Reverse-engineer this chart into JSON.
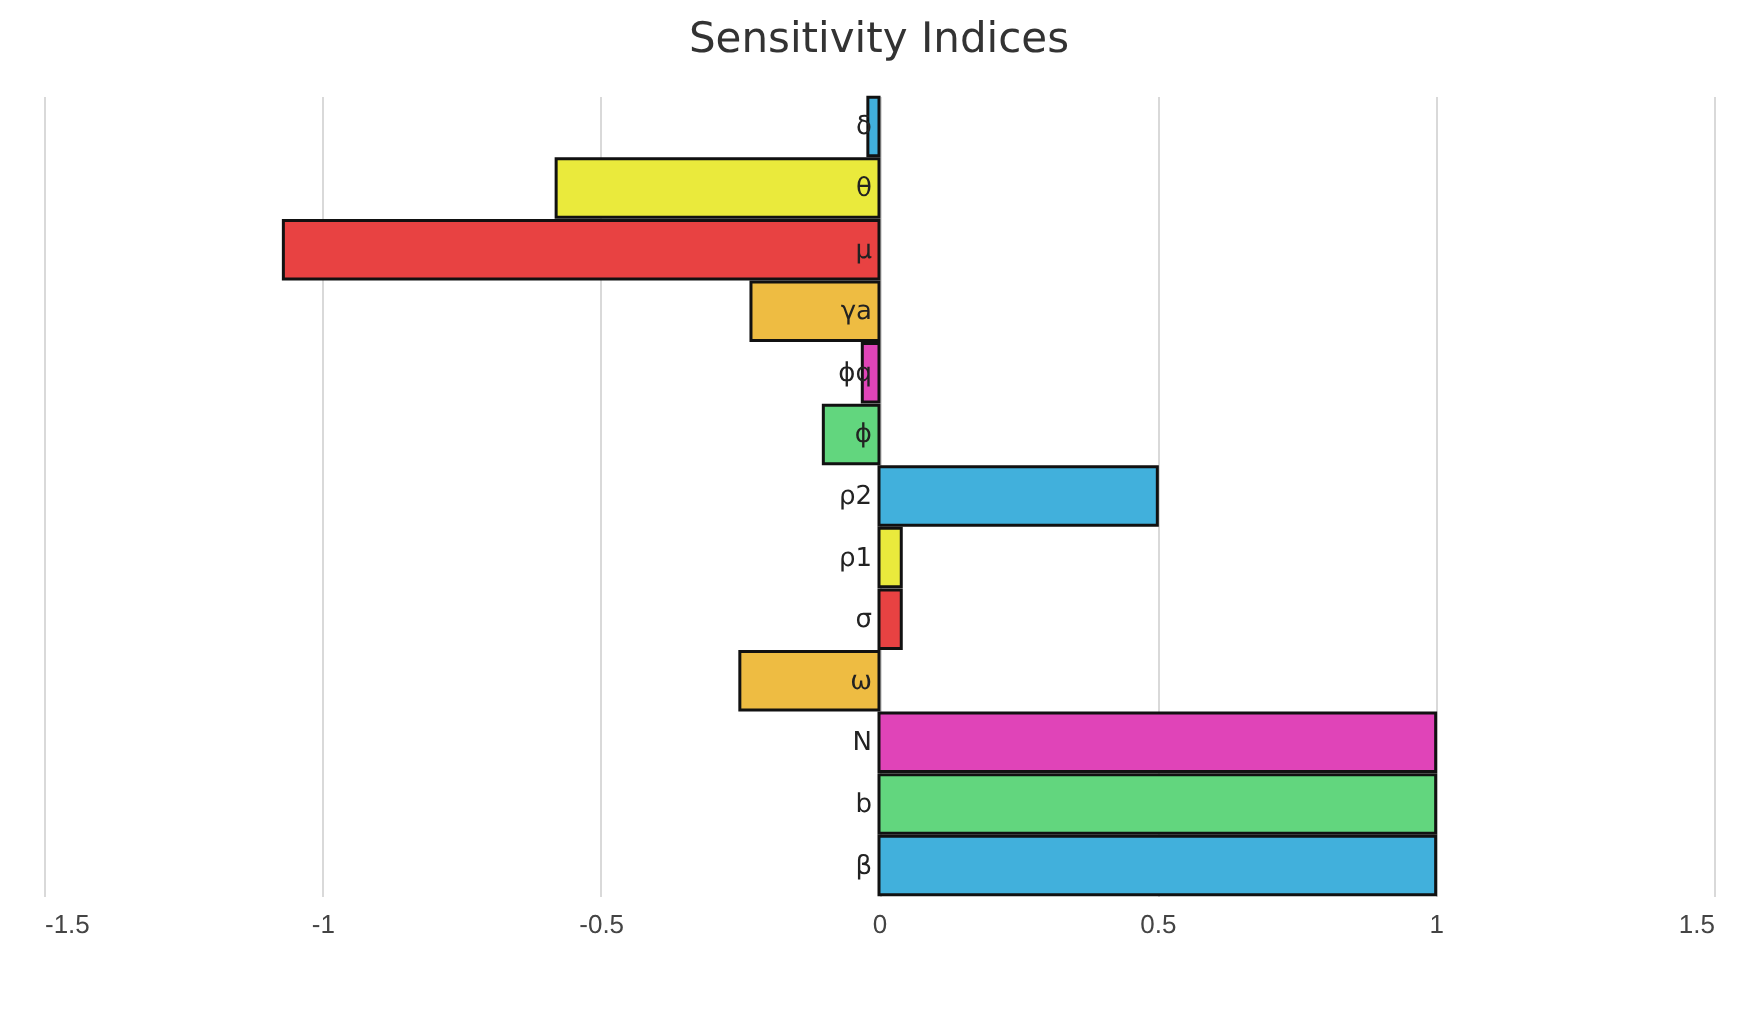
{
  "chart_data": {
    "type": "bar",
    "orientation": "horizontal",
    "title": "Sensitivity Indices",
    "categories": [
      "δ",
      "θ",
      "μ",
      "γa",
      "ϕq",
      "ϕ",
      "ρ2",
      "ρ1",
      "σ",
      "ω",
      "N",
      "b",
      "β"
    ],
    "values": [
      -0.02,
      -0.58,
      -1.07,
      -0.23,
      -0.03,
      -0.1,
      0.5,
      0.04,
      0.04,
      -0.25,
      1,
      1,
      1
    ],
    "colors": [
      "#41b0dc",
      "#eaea3c",
      "#e84242",
      "#eebc42",
      "#e044b8",
      "#62d67e",
      "#41b0dc",
      "#eaea3c",
      "#e84242",
      "#eebc42",
      "#e044b8",
      "#62d67e",
      "#41b0dc"
    ],
    "xlim": [
      -1.5,
      1.5
    ],
    "xticks": [
      -1.5,
      -1,
      -0.5,
      0,
      0.5,
      1,
      1.5
    ],
    "grid": "x"
  }
}
